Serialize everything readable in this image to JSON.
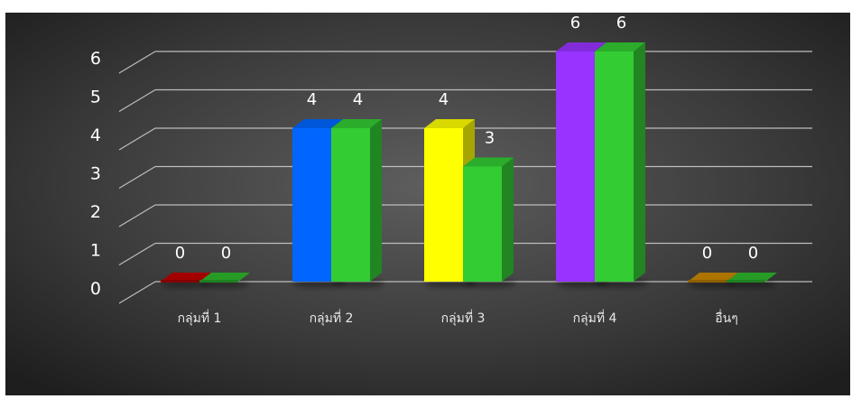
{
  "chart_data": {
    "type": "bar",
    "categories": [
      "กลุ่มที่ 1",
      "กลุ่มที่ 2",
      "กลุ่มที่ 3",
      "กลุ่มที่ 4",
      "อื่นๆ"
    ],
    "series": [
      {
        "values": [
          0,
          4,
          4,
          6,
          0
        ],
        "colors": [
          "#c00000",
          "#0066ff",
          "#ffff00",
          "#9933ff",
          "#cc8800"
        ]
      },
      {
        "values": [
          0,
          4,
          3,
          6,
          0
        ],
        "colors": [
          "#2db82d",
          "#33cc33",
          "#33cc33",
          "#33cc33",
          "#2db82d"
        ]
      }
    ],
    "yticks": [
      "0",
      "1",
      "2",
      "3",
      "4",
      "5",
      "6"
    ],
    "ylim": [
      0,
      6
    ],
    "grid": true,
    "legend": "none",
    "style": "3d-clustered-column",
    "background": "dark-radial-gradient"
  }
}
